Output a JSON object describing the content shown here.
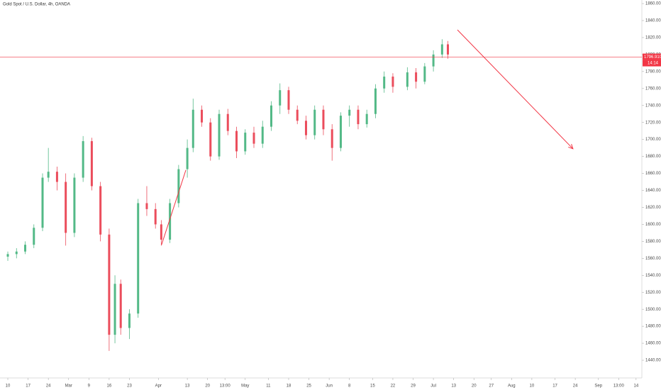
{
  "chart_data": {
    "type": "candlestick",
    "title": "Gold Spot / U.S. Dollar, 4h, OANDA",
    "up_color": "#53b987",
    "down_color": "#eb4d5c",
    "xlim": [
      -2.7,
      219
    ],
    "ylim": [
      1420,
      1864.2
    ],
    "yticks": [
      {
        "value": 1440,
        "label": "1440.000"
      },
      {
        "value": 1460,
        "label": "1460.000"
      },
      {
        "value": 1480,
        "label": "1480.000"
      },
      {
        "value": 1500,
        "label": "1500.000"
      },
      {
        "value": 1520,
        "label": "1520.000"
      },
      {
        "value": 1540,
        "label": "1540.000"
      },
      {
        "value": 1560,
        "label": "1560.000"
      },
      {
        "value": 1580,
        "label": "1580.000"
      },
      {
        "value": 1600,
        "label": "1600.000"
      },
      {
        "value": 1620,
        "label": "1620.000"
      },
      {
        "value": 1640,
        "label": "1640.000"
      },
      {
        "value": 1660,
        "label": "1660.000"
      },
      {
        "value": 1680,
        "label": "1680.000"
      },
      {
        "value": 1700,
        "label": "1700.000"
      },
      {
        "value": 1720,
        "label": "1720.000"
      },
      {
        "value": 1740,
        "label": "1740.000"
      },
      {
        "value": 1760,
        "label": "1760.000"
      },
      {
        "value": 1780,
        "label": "1780.000"
      },
      {
        "value": 1800,
        "label": "1800.000"
      },
      {
        "value": 1820,
        "label": "1820.000"
      },
      {
        "value": 1840,
        "label": "1840.000"
      },
      {
        "value": 1860,
        "label": "1860.000"
      }
    ],
    "xticks": [
      {
        "value": 0,
        "label": "10"
      },
      {
        "value": 7,
        "label": "17"
      },
      {
        "value": 14,
        "label": "24"
      },
      {
        "value": 21,
        "label": "Mar"
      },
      {
        "value": 28,
        "label": "9"
      },
      {
        "value": 35,
        "label": "16"
      },
      {
        "value": 42,
        "label": "23"
      },
      {
        "value": 52,
        "label": "Apr"
      },
      {
        "value": 62,
        "label": "13"
      },
      {
        "value": 69,
        "label": "20"
      },
      {
        "value": 75,
        "label": "13:00"
      },
      {
        "value": 82,
        "label": "May"
      },
      {
        "value": 90,
        "label": "11"
      },
      {
        "value": 97,
        "label": "18"
      },
      {
        "value": 104,
        "label": "25"
      },
      {
        "value": 111,
        "label": "Jun"
      },
      {
        "value": 118,
        "label": "8"
      },
      {
        "value": 126,
        "label": "15"
      },
      {
        "value": 133,
        "label": "22"
      },
      {
        "value": 140,
        "label": "29"
      },
      {
        "value": 147,
        "label": "Jul"
      },
      {
        "value": 154,
        "label": "13"
      },
      {
        "value": 161,
        "label": "20"
      },
      {
        "value": 167,
        "label": "27"
      },
      {
        "value": 174,
        "label": "Aug"
      },
      {
        "value": 181,
        "label": "10"
      },
      {
        "value": 189,
        "label": "17"
      },
      {
        "value": 196,
        "label": "24"
      },
      {
        "value": 204,
        "label": "Sep"
      },
      {
        "value": 211,
        "label": "13:00"
      },
      {
        "value": 217,
        "label": "14"
      }
    ],
    "candles": {
      "x": [
        0,
        3,
        6,
        9,
        12,
        14,
        17,
        20,
        23,
        26,
        29,
        32,
        35,
        37,
        39,
        42,
        45,
        48,
        51,
        53,
        56,
        59,
        62,
        64,
        67,
        70,
        73,
        76,
        79,
        82,
        85,
        88,
        91,
        94,
        97,
        100,
        103,
        106,
        109,
        112,
        115,
        118,
        121,
        124,
        127,
        130,
        133,
        138,
        141,
        144,
        147,
        150,
        152
      ],
      "open": [
        1562,
        1565,
        1568,
        1576,
        1596,
        1655,
        1662,
        1650,
        1590,
        1655,
        1698,
        1645,
        1588,
        1470,
        1530,
        1478,
        1495,
        1625,
        1618,
        1600,
        1582,
        1625,
        1665,
        1690,
        1735,
        1720,
        1680,
        1730,
        1710,
        1686,
        1708,
        1695,
        1715,
        1740,
        1758,
        1735,
        1722,
        1705,
        1735,
        1712,
        1690,
        1728,
        1735,
        1718,
        1730,
        1760,
        1774,
        1762,
        1779,
        1768,
        1786,
        1800,
        1812
      ],
      "high": [
        1568,
        1572,
        1580,
        1600,
        1660,
        1690,
        1668,
        1660,
        1660,
        1704,
        1702,
        1650,
        1595,
        1540,
        1535,
        1500,
        1630,
        1645,
        1625,
        1605,
        1630,
        1670,
        1700,
        1748,
        1740,
        1725,
        1735,
        1736,
        1715,
        1712,
        1715,
        1722,
        1745,
        1766,
        1762,
        1740,
        1728,
        1740,
        1740,
        1718,
        1732,
        1740,
        1740,
        1735,
        1765,
        1780,
        1778,
        1785,
        1784,
        1790,
        1805,
        1818,
        1816
      ],
      "low": [
        1557,
        1560,
        1565,
        1572,
        1592,
        1650,
        1640,
        1575,
        1585,
        1650,
        1640,
        1580,
        1451,
        1460,
        1470,
        1465,
        1490,
        1610,
        1595,
        1575,
        1578,
        1620,
        1655,
        1685,
        1715,
        1675,
        1676,
        1705,
        1678,
        1682,
        1690,
        1690,
        1710,
        1730,
        1730,
        1718,
        1700,
        1700,
        1705,
        1675,
        1686,
        1715,
        1712,
        1714,
        1725,
        1755,
        1755,
        1758,
        1760,
        1765,
        1780,
        1796,
        1795
      ],
      "close": [
        1565,
        1568,
        1576,
        1596,
        1655,
        1662,
        1650,
        1590,
        1655,
        1698,
        1645,
        1588,
        1470,
        1530,
        1478,
        1495,
        1625,
        1618,
        1600,
        1582,
        1625,
        1665,
        1690,
        1735,
        1720,
        1680,
        1730,
        1710,
        1686,
        1708,
        1695,
        1715,
        1740,
        1758,
        1735,
        1722,
        1705,
        1735,
        1712,
        1690,
        1728,
        1735,
        1718,
        1730,
        1760,
        1774,
        1762,
        1779,
        1768,
        1786,
        1800,
        1812,
        1800
      ]
    },
    "price_line": {
      "value": 1796.91,
      "label": "1796.910",
      "countdown": "14:14",
      "color": "#f23645"
    },
    "drawings": [
      {
        "x": [
          53.1,
          61.5
        ],
        "y": [
          1576,
          1664
        ],
        "color": "#f23645",
        "arrow": false
      },
      {
        "x": [
          155.3,
          195.2
        ],
        "y": [
          1829,
          1689
        ],
        "color": "#f23645",
        "arrow": true
      }
    ]
  }
}
